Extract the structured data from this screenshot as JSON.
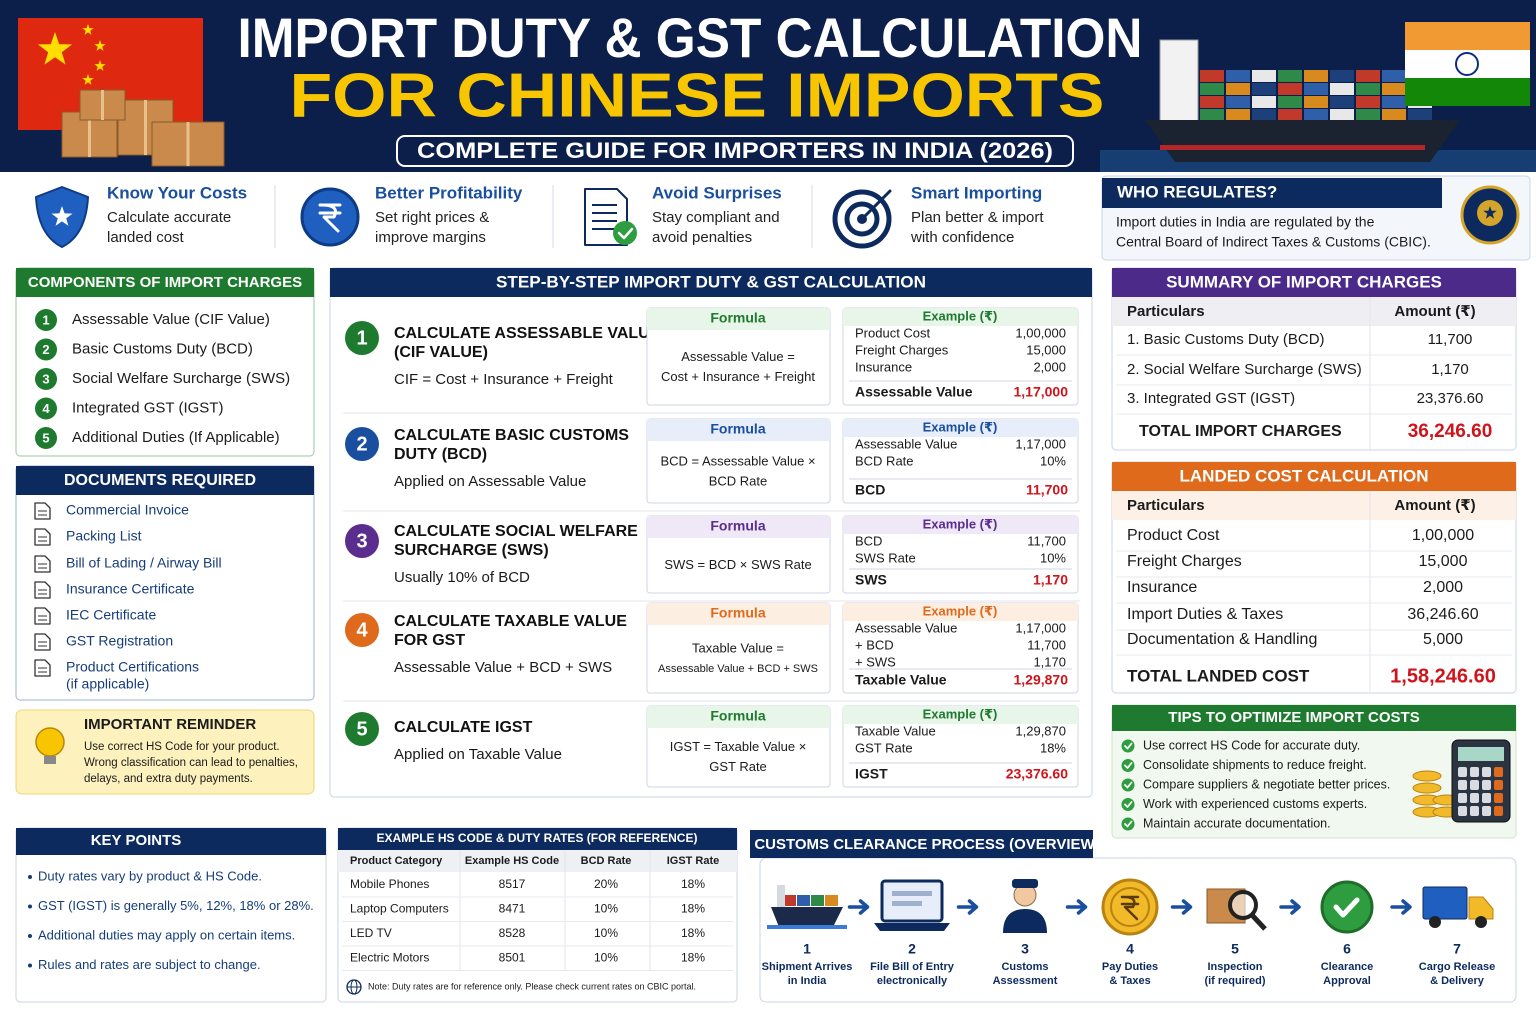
{
  "header": {
    "title_line1": "IMPORT DUTY & GST CALCULATION",
    "title_line2": "FOR CHINESE IMPORTS",
    "subtitle": "COMPLETE GUIDE FOR IMPORTERS IN INDIA (2026)"
  },
  "benefits": [
    {
      "title": "Know Your Costs",
      "text": [
        "Calculate accurate",
        "landed cost"
      ]
    },
    {
      "title": "Better Profitability",
      "text": [
        "Set right prices &",
        "improve margins"
      ]
    },
    {
      "title": "Avoid Surprises",
      "text": [
        "Stay compliant and",
        "avoid penalties"
      ]
    },
    {
      "title": "Smart Importing",
      "text": [
        "Plan better & import",
        "with confidence"
      ]
    }
  ],
  "regulator": {
    "title": "WHO REGULATES?",
    "text": [
      "Import duties in India are regulated by the",
      "Central Board of Indirect Taxes & Customs (CBIC)."
    ]
  },
  "components": {
    "title": "COMPONENTS OF IMPORT CHARGES",
    "items": [
      {
        "number": "1",
        "label": "Assessable Value (CIF Value)"
      },
      {
        "number": "2",
        "label": "Basic Customs Duty (BCD)"
      },
      {
        "number": "3",
        "label": "Social Welfare Surcharge (SWS)"
      },
      {
        "number": "4",
        "label": "Integrated GST (IGST)"
      },
      {
        "number": "5",
        "label": "Additional Duties (If Applicable)"
      }
    ]
  },
  "documents": {
    "title": "DOCUMENTS REQUIRED",
    "items": [
      [
        "Commercial Invoice"
      ],
      [
        "Packing List"
      ],
      [
        "Bill of Lading / Airway Bill"
      ],
      [
        "Insurance Certificate"
      ],
      [
        "IEC Certificate"
      ],
      [
        "GST Registration"
      ],
      [
        "Product Certifications",
        "(if applicable)"
      ]
    ]
  },
  "reminder": {
    "title": "IMPORTANT REMINDER",
    "text": [
      "Use correct HS Code for your product.",
      "Wrong classification can lead to penalties,",
      "delays, and extra duty payments."
    ]
  },
  "steps": {
    "title": "STEP-BY-STEP IMPORT DUTY & GST CALCULATION",
    "items": [
      {
        "number": "1",
        "title": [
          "CALCULATE ASSESSABLE VALUE",
          "(CIF VALUE)"
        ],
        "description": "CIF = Cost + Insurance + Freight",
        "formula_label": "Formula",
        "formula": [
          "Assessable Value =",
          "Cost + Insurance + Freight"
        ],
        "example_label": "Example (₹)",
        "example_rows": [
          [
            "Product Cost",
            "1,00,000"
          ],
          [
            "Freight Charges",
            "15,000"
          ],
          [
            "Insurance",
            "2,000"
          ]
        ],
        "result": [
          "Assessable Value",
          "1,17,000"
        ]
      },
      {
        "number": "2",
        "title": [
          "CALCULATE BASIC CUSTOMS",
          "DUTY (BCD)"
        ],
        "description": "Applied on Assessable Value",
        "formula_label": "Formula",
        "formula": [
          "BCD = Assessable Value ×",
          "BCD Rate"
        ],
        "example_label": "Example (₹)",
        "example_rows": [
          [
            "Assessable Value",
            "1,17,000"
          ],
          [
            "BCD Rate",
            "10%"
          ]
        ],
        "result": [
          "BCD",
          "11,700"
        ]
      },
      {
        "number": "3",
        "title": [
          "CALCULATE SOCIAL WELFARE",
          "SURCHARGE (SWS)"
        ],
        "description": "Usually 10% of BCD",
        "formula_label": "Formula",
        "formula": [
          "SWS = BCD × SWS Rate"
        ],
        "example_label": "Example (₹)",
        "example_rows": [
          [
            "BCD",
            "11,700"
          ],
          [
            "SWS Rate",
            "10%"
          ]
        ],
        "result": [
          "SWS",
          "1,170"
        ]
      },
      {
        "number": "4",
        "title": [
          "CALCULATE TAXABLE VALUE",
          "FOR GST"
        ],
        "description": "Assessable Value + BCD + SWS",
        "formula_label": "Formula",
        "formula": [
          "Taxable Value =",
          "Assessable Value + BCD + SWS"
        ],
        "example_label": "Example (₹)",
        "example_rows": [
          [
            "Assessable Value",
            "1,17,000"
          ],
          [
            "+ BCD",
            "11,700"
          ],
          [
            "+ SWS",
            "1,170"
          ]
        ],
        "result": [
          "Taxable Value",
          "1,29,870"
        ]
      },
      {
        "number": "5",
        "title": [
          "CALCULATE IGST"
        ],
        "description": "Applied on Taxable Value",
        "formula_label": "Formula",
        "formula": [
          "IGST = Taxable Value ×",
          "GST Rate"
        ],
        "example_label": "Example (₹)",
        "example_rows": [
          [
            "Taxable Value",
            "1,29,870"
          ],
          [
            "GST Rate",
            "18%"
          ]
        ],
        "result": [
          "IGST",
          "23,376.60"
        ]
      }
    ]
  },
  "summary": {
    "title": "SUMMARY OF IMPORT CHARGES",
    "headers": [
      "Particulars",
      "Amount (₹)"
    ],
    "rows": [
      [
        "1.  Basic Customs Duty (BCD)",
        "11,700"
      ],
      [
        "2.  Social Welfare Surcharge (SWS)",
        "1,170"
      ],
      [
        "3.  Integrated GST (IGST)",
        "23,376.60"
      ]
    ],
    "total": [
      "TOTAL IMPORT CHARGES",
      "36,246.60"
    ]
  },
  "landed": {
    "title": "LANDED COST CALCULATION",
    "headers": [
      "Particulars",
      "Amount (₹)"
    ],
    "rows": [
      [
        "Product Cost",
        "1,00,000"
      ],
      [
        "Freight Charges",
        "15,000"
      ],
      [
        "Insurance",
        "2,000"
      ],
      [
        "Import Duties & Taxes",
        "36,246.60"
      ],
      [
        "Documentation & Handling",
        "5,000"
      ]
    ],
    "total": [
      "TOTAL LANDED COST",
      "1,58,246.60"
    ]
  },
  "tips": {
    "title": "TIPS TO OPTIMIZE IMPORT COSTS",
    "items": [
      "Use correct HS Code for accurate duty.",
      "Consolidate shipments to reduce freight.",
      "Compare suppliers & negotiate better prices.",
      "Work with experienced customs experts.",
      "Maintain accurate documentation."
    ]
  },
  "key_points": {
    "title": "KEY POINTS",
    "items": [
      "Duty rates vary by product & HS Code.",
      "GST (IGST) is generally 5%, 12%, 18% or 28%.",
      "Additional duties may apply on certain items.",
      "Rules and rates are subject to change."
    ]
  },
  "hs_table": {
    "title": "EXAMPLE HS CODE & DUTY RATES (FOR REFERENCE)",
    "headers": [
      "Product Category",
      "Example HS Code",
      "BCD Rate",
      "IGST Rate"
    ],
    "rows": [
      [
        "Mobile Phones",
        "8517",
        "20%",
        "18%"
      ],
      [
        "Laptop Computers",
        "8471",
        "10%",
        "18%"
      ],
      [
        "LED TV",
        "8528",
        "10%",
        "18%"
      ],
      [
        "Electric Motors",
        "8501",
        "10%",
        "18%"
      ]
    ],
    "note": "Note: Duty rates are for reference only. Please check current rates on CBIC portal."
  },
  "clearance": {
    "title": "CUSTOMS CLEARANCE PROCESS (OVERVIEW)",
    "steps": [
      {
        "number": "1",
        "label": [
          "Shipment Arrives",
          "in India"
        ]
      },
      {
        "number": "2",
        "label": [
          "File Bill of Entry",
          "electronically"
        ]
      },
      {
        "number": "3",
        "label": [
          "Customs",
          "Assessment"
        ]
      },
      {
        "number": "4",
        "label": [
          "Pay Duties",
          "& Taxes"
        ]
      },
      {
        "number": "5",
        "label": [
          "Inspection",
          "(if required)"
        ]
      },
      {
        "number": "6",
        "label": [
          "Clearance",
          "Approval"
        ]
      },
      {
        "number": "7",
        "label": [
          "Cargo Release",
          "& Delivery"
        ]
      }
    ]
  }
}
